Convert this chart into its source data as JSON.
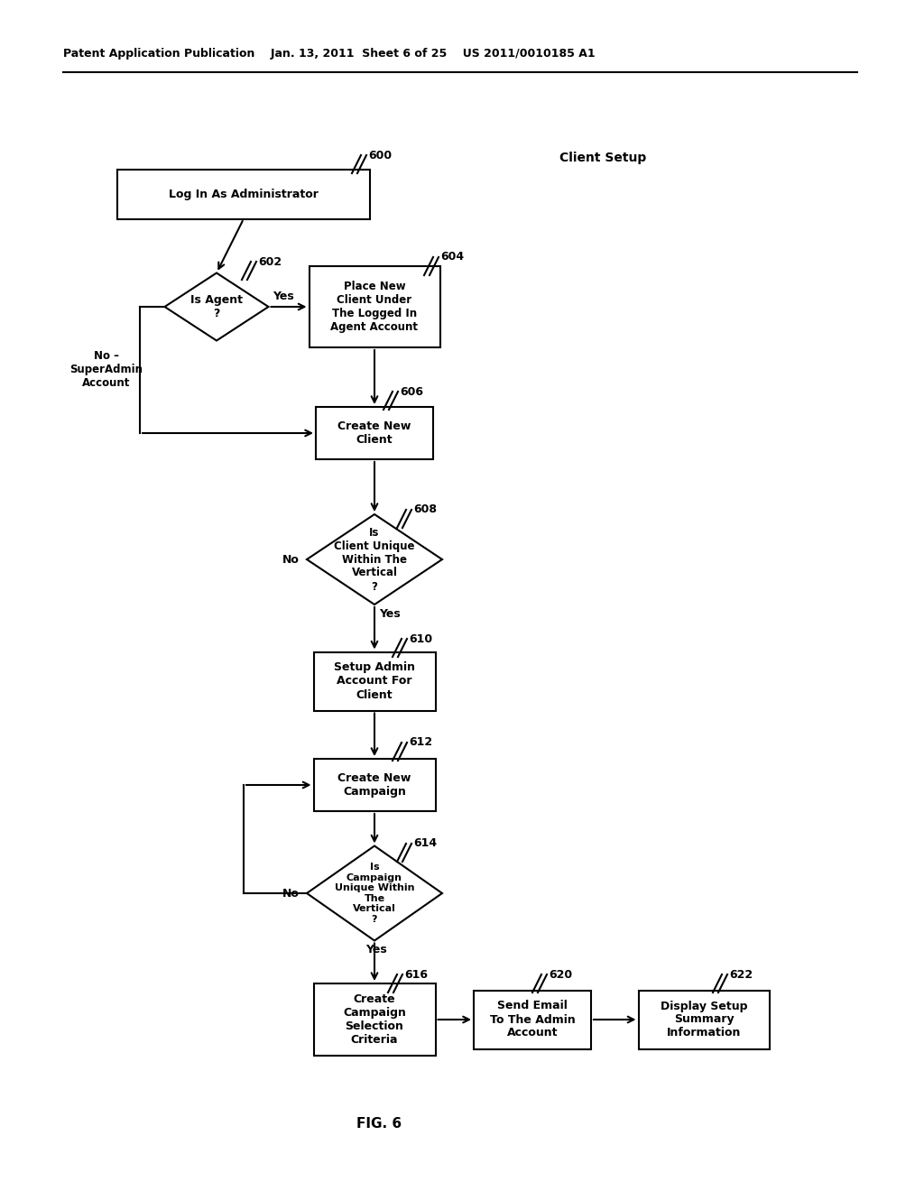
{
  "background_color": "#ffffff",
  "header": "Patent Application Publication    Jan. 13, 2011  Sheet 6 of 25    US 2011/0010185 A1",
  "client_setup": "Client Setup",
  "fig_label": "FIG. 6",
  "lw": 1.5
}
